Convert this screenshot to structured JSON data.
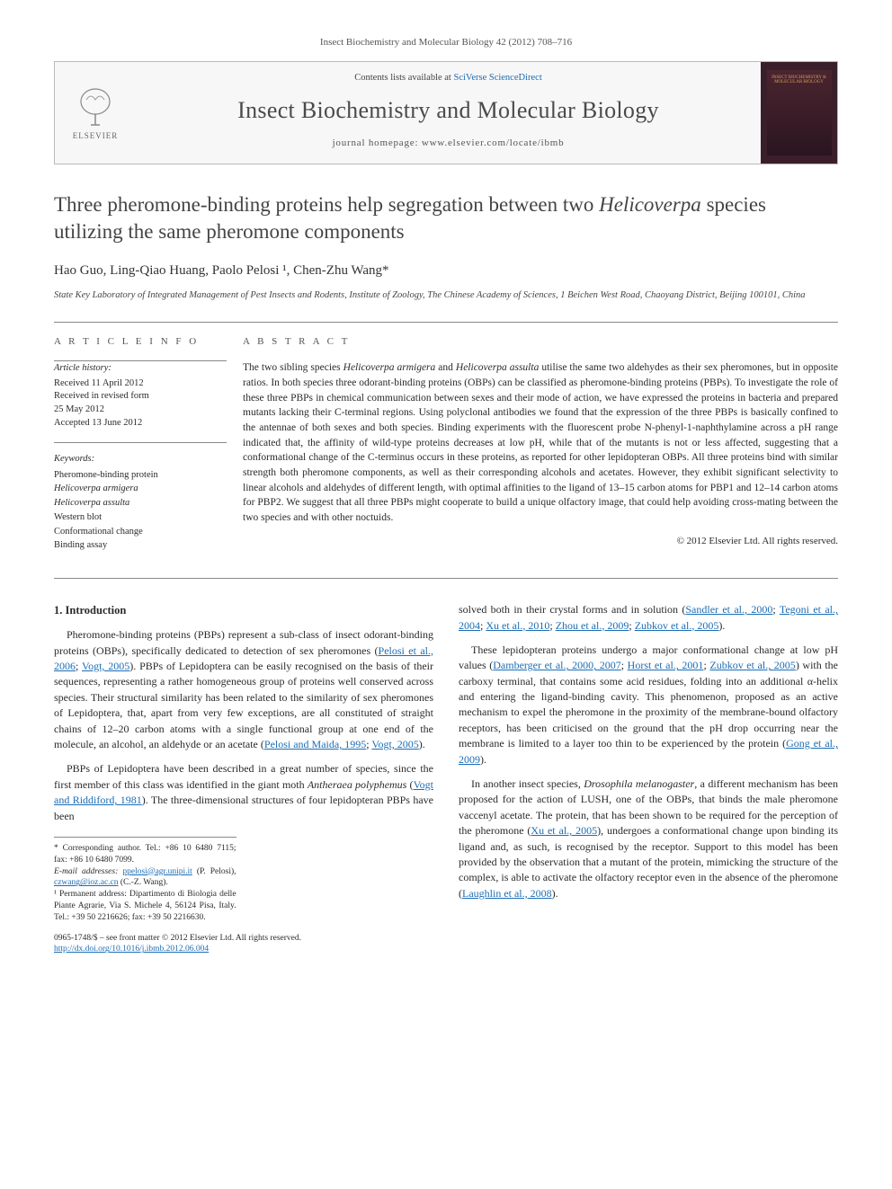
{
  "header": {
    "citation": "Insect Biochemistry and Molecular Biology 42 (2012) 708–716",
    "contents_prefix": "Contents lists available at ",
    "contents_link": "SciVerse ScienceDirect",
    "journal_name": "Insect Biochemistry and Molecular Biology",
    "homepage_prefix": "journal homepage: ",
    "homepage_url": "www.elsevier.com/locate/ibmb",
    "publisher": "ELSEVIER",
    "cover_text": "INSECT BIOCHEMISTRY & MOLECULAR BIOLOGY"
  },
  "title_line1": "Three pheromone-binding proteins help segregation between two",
  "title_italic": "Helicoverpa",
  "title_line2": " species utilizing the same pheromone components",
  "authors": "Hao Guo, Ling-Qiao Huang, Paolo Pelosi ¹, Chen-Zhu Wang*",
  "affiliation": "State Key Laboratory of Integrated Management of Pest Insects and Rodents, Institute of Zoology, The Chinese Academy of Sciences, 1 Beichen West Road, Chaoyang District, Beijing 100101, China",
  "article_info": {
    "head": "A R T I C L E   I N F O",
    "history_label": "Article history:",
    "history": [
      "Received 11 April 2012",
      "Received in revised form",
      "25 May 2012",
      "Accepted 13 June 2012"
    ],
    "keywords_label": "Keywords:",
    "keywords": [
      {
        "text": "Pheromone-binding protein",
        "italic": false
      },
      {
        "text": "Helicoverpa armigera",
        "italic": true
      },
      {
        "text": "Helicoverpa assulta",
        "italic": true
      },
      {
        "text": "Western blot",
        "italic": false
      },
      {
        "text": "Conformational change",
        "italic": false
      },
      {
        "text": "Binding assay",
        "italic": false
      }
    ]
  },
  "abstract": {
    "head": "A B S T R A C T",
    "text_parts": [
      {
        "t": "The two sibling species ",
        "i": false
      },
      {
        "t": "Helicoverpa armigera",
        "i": true
      },
      {
        "t": " and ",
        "i": false
      },
      {
        "t": "Helicoverpa assulta",
        "i": true
      },
      {
        "t": " utilise the same two aldehydes as their sex pheromones, but in opposite ratios. In both species three odorant-binding proteins (OBPs) can be classified as pheromone-binding proteins (PBPs). To investigate the role of these three PBPs in chemical communication between sexes and their mode of action, we have expressed the proteins in bacteria and prepared mutants lacking their C-terminal regions. Using polyclonal antibodies we found that the expression of the three PBPs is basically confined to the antennae of both sexes and both species. Binding experiments with the fluorescent probe N-phenyl-1-naphthylamine across a pH range indicated that, the affinity of wild-type proteins decreases at low pH, while that of the mutants is not or less affected, suggesting that a conformational change of the C-terminus occurs in these proteins, as reported for other lepidopteran OBPs. All three proteins bind with similar strength both pheromone components, as well as their corresponding alcohols and acetates. However, they exhibit significant selectivity to linear alcohols and aldehydes of different length, with optimal affinities to the ligand of 13–15 carbon atoms for PBP1 and 12–14 carbon atoms for PBP2. We suggest that all three PBPs might cooperate to build a unique olfactory image, that could help avoiding cross-mating between the two species and with other noctuids.",
        "i": false
      }
    ],
    "copyright": "© 2012 Elsevier Ltd. All rights reserved."
  },
  "section1_head": "1. Introduction",
  "para1": {
    "runs": [
      {
        "t": "Pheromone-binding proteins (PBPs) represent a sub-class of insect odorant-binding proteins (OBPs), specifically dedicated to detection of sex pheromones (",
        "i": false,
        "r": false
      },
      {
        "t": "Pelosi et al., 2006",
        "i": false,
        "r": true
      },
      {
        "t": "; ",
        "i": false,
        "r": false
      },
      {
        "t": "Vogt, 2005",
        "i": false,
        "r": true
      },
      {
        "t": "). PBPs of Lepidoptera can be easily recognised on the basis of their sequences, representing a rather homogeneous group of proteins well conserved across species. Their structural similarity has been related to the similarity of sex pheromones of Lepidoptera, that, apart from very few exceptions, are all constituted of straight chains of 12–20 carbon atoms with a single functional group at one end of the molecule, an alcohol, an aldehyde or an acetate (",
        "i": false,
        "r": false
      },
      {
        "t": "Pelosi and Maida, 1995",
        "i": false,
        "r": true
      },
      {
        "t": "; ",
        "i": false,
        "r": false
      },
      {
        "t": "Vogt, 2005",
        "i": false,
        "r": true
      },
      {
        "t": ").",
        "i": false,
        "r": false
      }
    ]
  },
  "para2": {
    "runs": [
      {
        "t": "PBPs of Lepidoptera have been described in a great number of species, since the first member of this class was identified in the giant moth ",
        "i": false,
        "r": false
      },
      {
        "t": "Antheraea polyphemus",
        "i": true,
        "r": false
      },
      {
        "t": " (",
        "i": false,
        "r": false
      },
      {
        "t": "Vogt and Riddiford, 1981",
        "i": false,
        "r": true
      },
      {
        "t": "). The three-dimensional structures of four lepidopteran PBPs have been ",
        "i": false,
        "r": false
      }
    ]
  },
  "para2b": {
    "runs": [
      {
        "t": "solved both in their crystal forms and in solution (",
        "i": false,
        "r": false
      },
      {
        "t": "Sandler et al., 2000",
        "i": false,
        "r": true
      },
      {
        "t": "; ",
        "i": false,
        "r": false
      },
      {
        "t": "Tegoni et al., 2004",
        "i": false,
        "r": true
      },
      {
        "t": "; ",
        "i": false,
        "r": false
      },
      {
        "t": "Xu et al., 2010",
        "i": false,
        "r": true
      },
      {
        "t": "; ",
        "i": false,
        "r": false
      },
      {
        "t": "Zhou et al., 2009",
        "i": false,
        "r": true
      },
      {
        "t": "; ",
        "i": false,
        "r": false
      },
      {
        "t": "Zubkov et al., 2005",
        "i": false,
        "r": true
      },
      {
        "t": ").",
        "i": false,
        "r": false
      }
    ]
  },
  "para3": {
    "runs": [
      {
        "t": "These lepidopteran proteins undergo a major conformational change at low pH values (",
        "i": false,
        "r": false
      },
      {
        "t": "Damberger et al., 2000, 2007",
        "i": false,
        "r": true
      },
      {
        "t": "; ",
        "i": false,
        "r": false
      },
      {
        "t": "Horst et al., 2001",
        "i": false,
        "r": true
      },
      {
        "t": "; ",
        "i": false,
        "r": false
      },
      {
        "t": "Zubkov et al., 2005",
        "i": false,
        "r": true
      },
      {
        "t": ") with the carboxy terminal, that contains some acid residues, folding into an additional α-helix and entering the ligand-binding cavity. This phenomenon, proposed as an active mechanism to expel the pheromone in the proximity of the membrane-bound olfactory receptors, has been criticised on the ground that the pH drop occurring near the membrane is limited to a layer too thin to be experienced by the protein (",
        "i": false,
        "r": false
      },
      {
        "t": "Gong et al., 2009",
        "i": false,
        "r": true
      },
      {
        "t": ").",
        "i": false,
        "r": false
      }
    ]
  },
  "para4": {
    "runs": [
      {
        "t": "In another insect species, ",
        "i": false,
        "r": false
      },
      {
        "t": "Drosophila melanogaster",
        "i": true,
        "r": false
      },
      {
        "t": ", a different mechanism has been proposed for the action of LUSH, one of the OBPs, that binds the male pheromone vaccenyl acetate. The protein, that has been shown to be required for the perception of the pheromone (",
        "i": false,
        "r": false
      },
      {
        "t": "Xu et al., 2005",
        "i": false,
        "r": true
      },
      {
        "t": "), undergoes a conformational change upon binding its ligand and, as such, is recognised by the receptor. Support to this model has been provided by the observation that a mutant of the protein, mimicking the structure of the complex, is able to activate the olfactory receptor even in the absence of the pheromone (",
        "i": false,
        "r": false
      },
      {
        "t": "Laughlin et al., 2008",
        "i": false,
        "r": true
      },
      {
        "t": ").",
        "i": false,
        "r": false
      }
    ]
  },
  "footnotes": {
    "corr": "* Corresponding author. Tel.: +86 10 6480 7115; fax: +86 10 6480 7099.",
    "emails_label": "E-mail addresses:",
    "email1": "ppelosi@agr.unipi.it",
    "email1_who": " (P. Pelosi), ",
    "email2": "czwang@ioz.ac.cn",
    "email2_who": " (C.-Z. Wang).",
    "perm": "¹ Permanent address: Dipartimento di Biologia delle Piante Agrarie, Via S. Michele 4, 56124 Pisa, Italy. Tel.: +39 50 2216626; fax: +39 50 2216630."
  },
  "bottom": {
    "issn": "0965-1748/$ – see front matter © 2012 Elsevier Ltd. All rights reserved.",
    "doi": "http://dx.doi.org/10.1016/j.ibmb.2012.06.004"
  },
  "colors": {
    "link": "#1b6db5",
    "text": "#2a2a2a",
    "rule": "#888888"
  }
}
